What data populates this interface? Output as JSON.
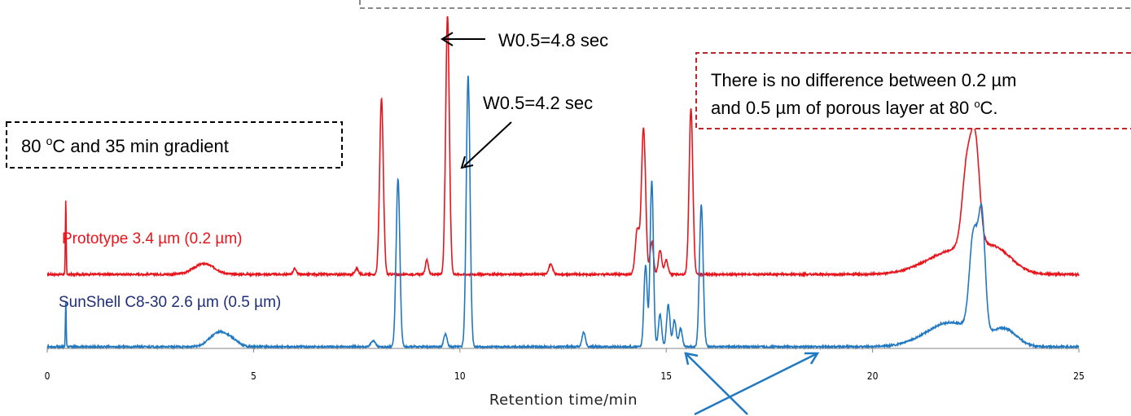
{
  "chart_data": {
    "type": "line",
    "title": "",
    "xlabel": "Retention time/min",
    "ylabel": "",
    "xlim": [
      0,
      25
    ],
    "x_ticks": [
      0,
      5,
      10,
      15,
      20,
      25
    ],
    "legend": "none",
    "grid": false,
    "series": [
      {
        "name": "Prototype 3.4 µm (0.2 µm)",
        "color": "#e8141c",
        "baseline": 337,
        "peaks": [
          {
            "x": 0.45,
            "height": 92,
            "width": 0.01
          },
          {
            "x": 3.8,
            "height": 13,
            "width": 0.25
          },
          {
            "x": 6.0,
            "height": 7,
            "width": 0.04
          },
          {
            "x": 7.5,
            "height": 7,
            "width": 0.04
          },
          {
            "x": 8.1,
            "height": 216,
            "width": 0.045
          },
          {
            "x": 9.2,
            "height": 18,
            "width": 0.035
          },
          {
            "x": 9.7,
            "height": 318,
            "width": 0.045
          },
          {
            "x": 12.2,
            "height": 12,
            "width": 0.05
          },
          {
            "x": 14.3,
            "height": 55,
            "width": 0.05
          },
          {
            "x": 14.45,
            "height": 180,
            "width": 0.05
          },
          {
            "x": 14.65,
            "height": 40,
            "width": 0.04
          },
          {
            "x": 14.85,
            "height": 30,
            "width": 0.04
          },
          {
            "x": 15.0,
            "height": 18,
            "width": 0.04
          },
          {
            "x": 15.6,
            "height": 204,
            "width": 0.045
          },
          {
            "x": 22.05,
            "height": 30,
            "width": 0.7
          },
          {
            "x": 22.3,
            "height": 107,
            "width": 0.12
          },
          {
            "x": 22.5,
            "height": 112,
            "width": 0.1
          },
          {
            "x": 23.0,
            "height": 22,
            "width": 0.4
          }
        ]
      },
      {
        "name": "SunShell C8-30 2.6 µm (0.5 µm)",
        "color": "#1f78c1",
        "baseline": 426,
        "peaks": [
          {
            "x": 0.45,
            "height": 55,
            "width": 0.01
          },
          {
            "x": 4.1,
            "height": 14,
            "width": 0.2
          },
          {
            "x": 4.4,
            "height": 10,
            "width": 0.2
          },
          {
            "x": 7.9,
            "height": 8,
            "width": 0.05
          },
          {
            "x": 8.5,
            "height": 207,
            "width": 0.045
          },
          {
            "x": 9.65,
            "height": 16,
            "width": 0.04
          },
          {
            "x": 10.2,
            "height": 333,
            "width": 0.045
          },
          {
            "x": 13.0,
            "height": 18,
            "width": 0.04
          },
          {
            "x": 14.5,
            "height": 100,
            "width": 0.04
          },
          {
            "x": 14.65,
            "height": 204,
            "width": 0.04
          },
          {
            "x": 14.85,
            "height": 40,
            "width": 0.04
          },
          {
            "x": 15.05,
            "height": 52,
            "width": 0.04
          },
          {
            "x": 15.2,
            "height": 33,
            "width": 0.04
          },
          {
            "x": 15.35,
            "height": 22,
            "width": 0.04
          },
          {
            "x": 15.85,
            "height": 174,
            "width": 0.045
          },
          {
            "x": 21.9,
            "height": 30,
            "width": 0.6
          },
          {
            "x": 22.45,
            "height": 120,
            "width": 0.1
          },
          {
            "x": 22.65,
            "height": 138,
            "width": 0.08
          },
          {
            "x": 23.2,
            "height": 20,
            "width": 0.3
          }
        ]
      }
    ],
    "annotations": [
      {
        "text": "80 °C and 35 min gradient",
        "box": "black-dashed"
      },
      {
        "text": "W0.5=4.8 sec",
        "target": "Prototype peak at 9.7 min"
      },
      {
        "text": "W0.5=4.2 sec",
        "target": "SunShell peak at 10.2 min"
      },
      {
        "text": "There is no difference between 0.2 µm",
        "box": "red-dashed"
      },
      {
        "text": "and 0.5 µm of porous layer at 80 °C.",
        "box": "red-dashed"
      }
    ]
  },
  "labels": {
    "box1": "80 ",
    "box1_deg": "o",
    "box1_rest": "C and 35 min gradient",
    "w1": "W0.5=4.8 sec",
    "w2": "W0.5=4.2 sec",
    "note_line1": "There is no difference between 0.2 µm",
    "note_line2a": "and 0.5 µm of porous layer at 80 ",
    "note_deg": "o",
    "note_line2b": "C.",
    "proto": "Prototype 3.4 µm (0.2 µm)",
    "sunshell": "SunShell C8-30 2.6 µm (0.5 µm)",
    "xlabel": "Retention time/min",
    "ticks": [
      "0",
      "5",
      "10",
      "15",
      "20",
      "25"
    ]
  }
}
